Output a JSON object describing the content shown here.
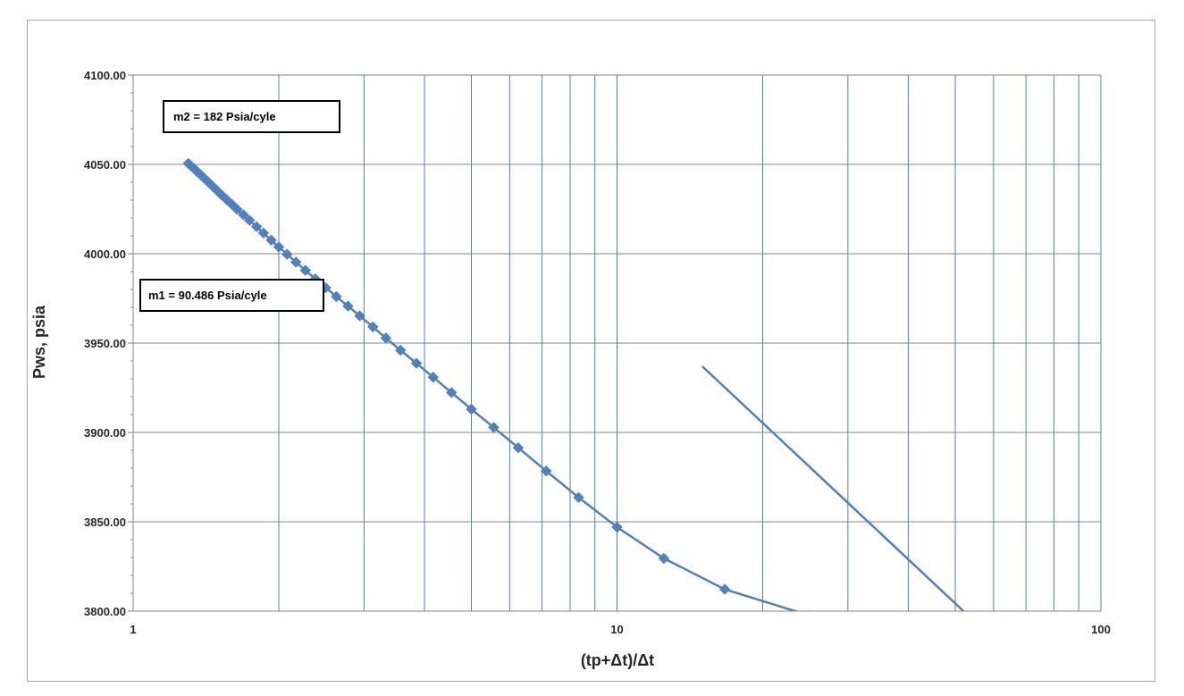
{
  "chart_data": {
    "type": "line",
    "title": "",
    "xlabel": "(tp+Δt)/Δt",
    "ylabel": "Pws, psia",
    "x_scale": "log",
    "xlim": [
      1,
      100
    ],
    "ylim": [
      3800,
      4100
    ],
    "x_ticks": [
      1,
      10,
      100
    ],
    "x_tick_labels": [
      "1",
      "10",
      "100"
    ],
    "y_ticks": [
      3800,
      3850,
      3900,
      3950,
      4000,
      4050,
      4100
    ],
    "y_tick_labels": [
      "3800.00",
      "3850.00",
      "3900.00",
      "3950.00",
      "4000.00",
      "4050.00",
      "4100.00"
    ],
    "grid": true,
    "legend": "none",
    "series_color": "#4f81bd",
    "gridline_color_x": "#4f81bd",
    "gridline_color_y": "#868686",
    "series": [
      {
        "marker": "diamond",
        "x": [
          1.3,
          1.32,
          1.34,
          1.36,
          1.38,
          1.4,
          1.43,
          1.46,
          1.49,
          1.52,
          1.56,
          1.6,
          1.64,
          1.69,
          1.74,
          1.8,
          1.86,
          1.93,
          2.0,
          2.08,
          2.17,
          2.27,
          2.38,
          2.5,
          2.63,
          2.78,
          2.94,
          3.13,
          3.33,
          3.57,
          3.85,
          4.17,
          4.55,
          5.0,
          5.56,
          6.25,
          7.14,
          8.33,
          10.0,
          12.5,
          16.7,
          25.0,
          50.0
        ],
        "y": [
          4050.5,
          4048.9,
          4047.3,
          4045.6,
          4044.1,
          4042.5,
          4040.1,
          4037.7,
          4035.4,
          4033.1,
          4030.3,
          4027.6,
          4024.9,
          4021.8,
          4018.7,
          4015.1,
          4011.6,
          4007.6,
          4003.8,
          3999.7,
          3995.3,
          3990.7,
          3985.9,
          3981.0,
          3976.0,
          3970.7,
          3965.2,
          3959.1,
          3952.8,
          3946.0,
          3938.7,
          3930.9,
          3922.3,
          3913.0,
          3902.8,
          3891.4,
          3878.4,
          3863.6,
          3847.0,
          3829.5,
          3812.2,
          3797.5,
          3785.2
        ]
      },
      {
        "marker": "none",
        "x": [
          15.0,
          52.0
        ],
        "y": [
          3937.0,
          3800.0
        ]
      }
    ]
  },
  "annotations": {
    "m2": "m2 = 182 Psia/cyle",
    "m1": "m1 = 90.486 Psia/cyle"
  }
}
